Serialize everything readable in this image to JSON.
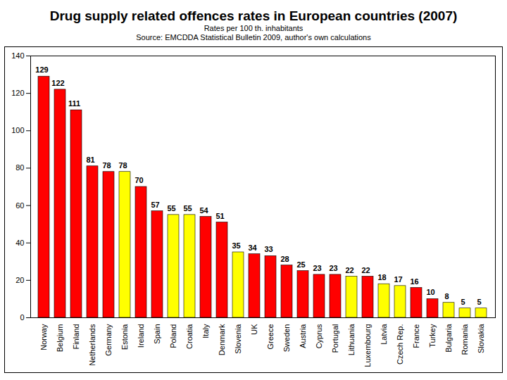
{
  "chart_data": {
    "type": "bar",
    "title": "Drug supply related offences rates in European countries (2007)",
    "subtitle": "Rates per 100 th. inhabitants",
    "source": "Source: EMCDDA Statistical Bulletin 2009, author's own calculations",
    "categories": [
      "Norway",
      "Belgium",
      "Finland",
      "Netherlands",
      "Germany",
      "Estonia",
      "Ireland",
      "Spain",
      "Poland",
      "Croatia",
      "Italy",
      "Denmark",
      "Slovenia",
      "UK",
      "Greece",
      "Sweden",
      "Austria",
      "Cyprus",
      "Portugal",
      "Lithuania",
      "Luxembourg",
      "Latvia",
      "Czech Rep.",
      "France",
      "Turkey",
      "Bulgaria",
      "Romania",
      "Slovakia"
    ],
    "values": [
      129,
      122,
      111,
      81,
      78,
      78,
      70,
      57,
      55,
      55,
      54,
      51,
      35,
      34,
      33,
      28,
      25,
      23,
      23,
      22,
      22,
      18,
      17,
      16,
      10,
      8,
      5,
      5
    ],
    "colors": [
      "#ff0000",
      "#ff0000",
      "#ff0000",
      "#ff0000",
      "#ff0000",
      "#ffff00",
      "#ff0000",
      "#ff0000",
      "#ffff00",
      "#ffff00",
      "#ff0000",
      "#ff0000",
      "#ffff00",
      "#ff0000",
      "#ff0000",
      "#ff0000",
      "#ff0000",
      "#ff0000",
      "#ff0000",
      "#ffff00",
      "#ff0000",
      "#ffff00",
      "#ffff00",
      "#ff0000",
      "#ff0000",
      "#ffff00",
      "#ffff00",
      "#ffff00"
    ],
    "ylim": [
      0,
      140
    ],
    "yticks": [
      0,
      20,
      40,
      60,
      80,
      100,
      120,
      140
    ],
    "grid": false,
    "data_labels": true
  }
}
